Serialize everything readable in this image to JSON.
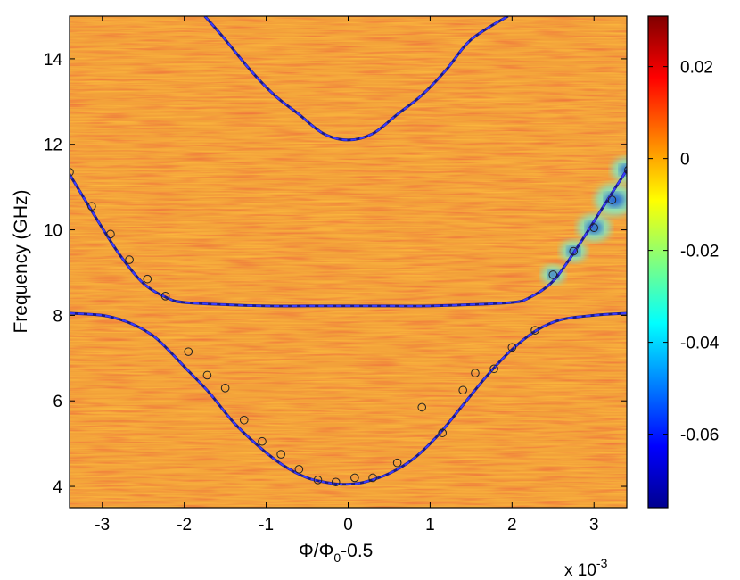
{
  "chart_data": {
    "type": "heatmap",
    "xlabel": "Φ/Φ₀-0.5",
    "xlabel_base": "Φ/Φ",
    "xlabel_sub": "0",
    "xlabel_tail": "-0.5",
    "ylabel": "Frequency (GHz)",
    "x_scale_note": "x 10",
    "x_scale_exponent": "-3",
    "xlim": [
      -3.4,
      3.4
    ],
    "ylim": [
      3.5,
      15
    ],
    "xticks": [
      -3,
      -2,
      -1,
      0,
      1,
      2,
      3
    ],
    "yticks": [
      4,
      6,
      8,
      10,
      12,
      14
    ],
    "colorbar": {
      "range": [
        -0.076,
        0.031
      ],
      "ticks": [
        0.02,
        0,
        -0.02,
        -0.04,
        -0.06
      ],
      "tick_labels": [
        "0.02",
        "0",
        "-0.02",
        "-0.04",
        "-0.06"
      ],
      "colormap": "jet"
    },
    "series": [
      {
        "name": "upper branch",
        "style": "solid+dashed",
        "x": [
          -1.75,
          -1.5,
          -1.2,
          -0.9,
          -0.6,
          -0.3,
          0,
          0.3,
          0.6,
          0.9,
          1.2,
          1.5,
          1.95
        ],
        "y": [
          15,
          14.45,
          13.75,
          13.15,
          12.7,
          12.25,
          12.1,
          12.25,
          12.7,
          13.15,
          13.75,
          14.45,
          15
        ]
      },
      {
        "name": "middle branch",
        "style": "solid+dashed",
        "x": [
          -3.4,
          -3.1,
          -2.8,
          -2.5,
          -2.2,
          -2.0,
          -1.5,
          -1.0,
          -0.5,
          0,
          0.5,
          1.0,
          1.5,
          2.0,
          2.2,
          2.5,
          2.8,
          3.1,
          3.4
        ],
        "y": [
          11.3,
          10.35,
          9.45,
          8.75,
          8.4,
          8.3,
          8.25,
          8.22,
          8.22,
          8.22,
          8.22,
          8.22,
          8.25,
          8.3,
          8.4,
          8.8,
          9.6,
          10.5,
          11.4
        ]
      },
      {
        "name": "lower branch",
        "style": "solid+dashed",
        "x": [
          -3.4,
          -3.0,
          -2.7,
          -2.4,
          -2.2,
          -2.0,
          -1.7,
          -1.4,
          -1.1,
          -0.8,
          -0.5,
          -0.2,
          0,
          0.2,
          0.5,
          0.8,
          1.1,
          1.4,
          1.7,
          2.0,
          2.3,
          2.6,
          3.0,
          3.4
        ],
        "y": [
          8.05,
          8.0,
          7.85,
          7.55,
          7.2,
          6.8,
          6.2,
          5.5,
          4.95,
          4.5,
          4.2,
          4.07,
          4.05,
          4.1,
          4.3,
          4.65,
          5.2,
          5.9,
          6.6,
          7.2,
          7.65,
          7.9,
          8.0,
          8.05
        ]
      },
      {
        "name": "measured points",
        "style": "markers",
        "x": [
          -3.4,
          -3.13,
          -2.9,
          -2.67,
          -2.45,
          -2.23,
          -1.95,
          -1.72,
          -1.5,
          -1.27,
          -1.05,
          -0.82,
          -0.6,
          -0.37,
          -0.15,
          0.08,
          0.3,
          0.6,
          0.9,
          1.15,
          1.4,
          1.55,
          1.78,
          2.0,
          2.28,
          2.5,
          2.75,
          3.0,
          3.22,
          3.42
        ],
        "y": [
          11.35,
          10.55,
          9.9,
          9.3,
          8.85,
          8.45,
          7.15,
          6.6,
          6.3,
          5.55,
          5.05,
          4.75,
          4.4,
          4.15,
          4.1,
          4.2,
          4.2,
          4.55,
          5.85,
          5.25,
          6.25,
          6.65,
          6.75,
          7.25,
          7.65,
          8.95,
          9.5,
          10.05,
          10.7,
          11.4
        ]
      }
    ],
    "dark_spots": [
      {
        "x": 2.75,
        "y": 9.5,
        "strength": 0.55
      },
      {
        "x": 3.0,
        "y": 10.05,
        "strength": 0.8
      },
      {
        "x": 3.25,
        "y": 10.7,
        "strength": 1.0
      },
      {
        "x": 3.4,
        "y": 11.4,
        "strength": 0.7
      },
      {
        "x": 2.5,
        "y": 8.95,
        "strength": 0.45
      }
    ]
  }
}
